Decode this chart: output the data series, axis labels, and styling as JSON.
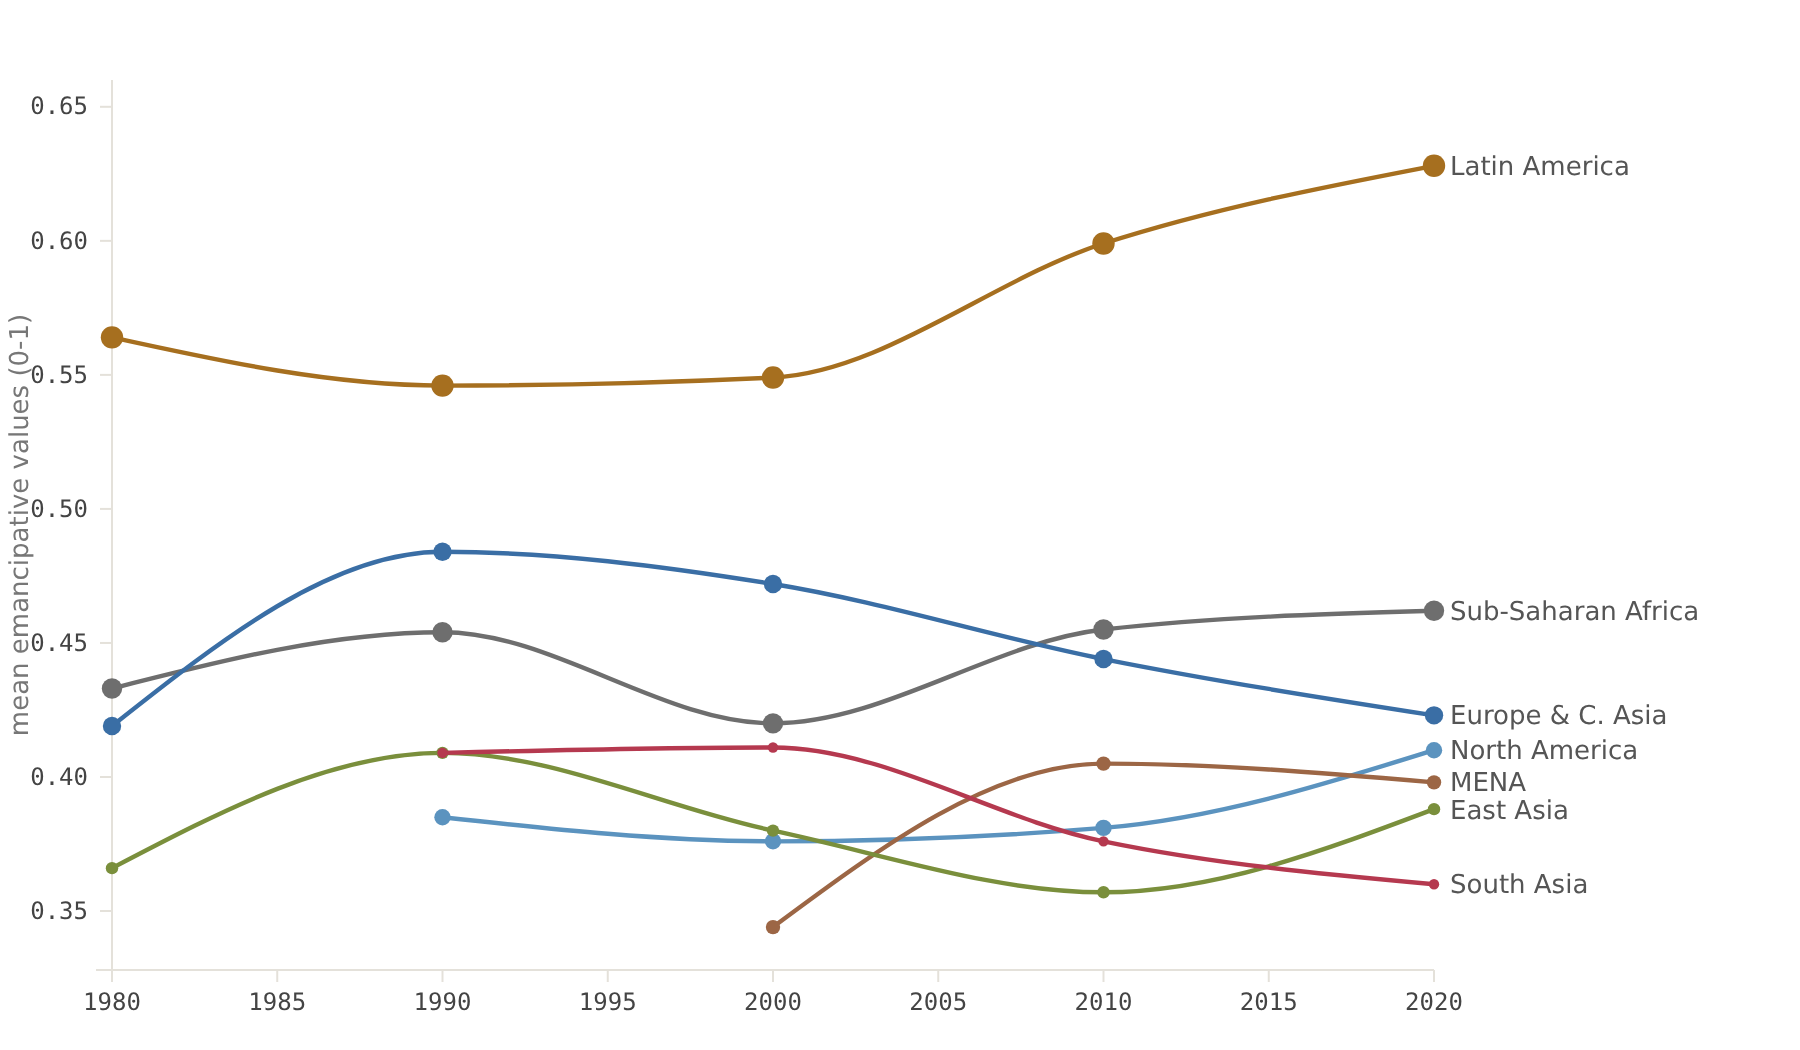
{
  "chart_data": {
    "type": "line",
    "ylabel": "mean emancipative values (0-1)",
    "x": [
      1980,
      1990,
      2000,
      2010,
      2020
    ],
    "xlim": [
      1980,
      2020
    ],
    "xticks": [
      1980,
      1985,
      1990,
      1995,
      2000,
      2005,
      2010,
      2015,
      2020
    ],
    "ylim": [
      0.328,
      0.66
    ],
    "yticks": [
      {
        "value": 0.35,
        "label": "0.35"
      },
      {
        "value": 0.4,
        "label": "0.40"
      },
      {
        "value": 0.45,
        "label": "0.45"
      },
      {
        "value": 0.5,
        "label": "0.50"
      },
      {
        "value": 0.55,
        "label": "0.55"
      },
      {
        "value": 0.6,
        "label": "0.60"
      },
      {
        "value": 0.65,
        "label": "0.65"
      }
    ],
    "grid": false,
    "marker": "circle",
    "line_style": "solid",
    "series": [
      {
        "name": "Latin America",
        "color": "#a66f1f",
        "values": [
          0.564,
          0.546,
          0.549,
          0.599,
          0.628
        ]
      },
      {
        "name": "Sub-Saharan Africa",
        "color": "#6e6e6e",
        "values": [
          0.433,
          0.454,
          0.42,
          0.455,
          0.462
        ]
      },
      {
        "name": "Europe & C. Asia",
        "color": "#3a6ea5",
        "values": [
          0.419,
          0.484,
          0.472,
          0.444,
          0.423
        ]
      },
      {
        "name": "North America",
        "color": "#5b93bf",
        "values": [
          null,
          0.385,
          0.376,
          0.381,
          0.41
        ]
      },
      {
        "name": "MENA",
        "color": "#9c6645",
        "values": [
          null,
          null,
          0.344,
          0.405,
          0.398
        ]
      },
      {
        "name": "East Asia",
        "color": "#7a8f3c",
        "values": [
          0.366,
          0.409,
          0.38,
          0.357,
          0.388
        ]
      },
      {
        "name": "South Asia",
        "color": "#b5394f",
        "values": [
          null,
          0.409,
          0.411,
          0.376,
          0.36
        ]
      }
    ]
  }
}
